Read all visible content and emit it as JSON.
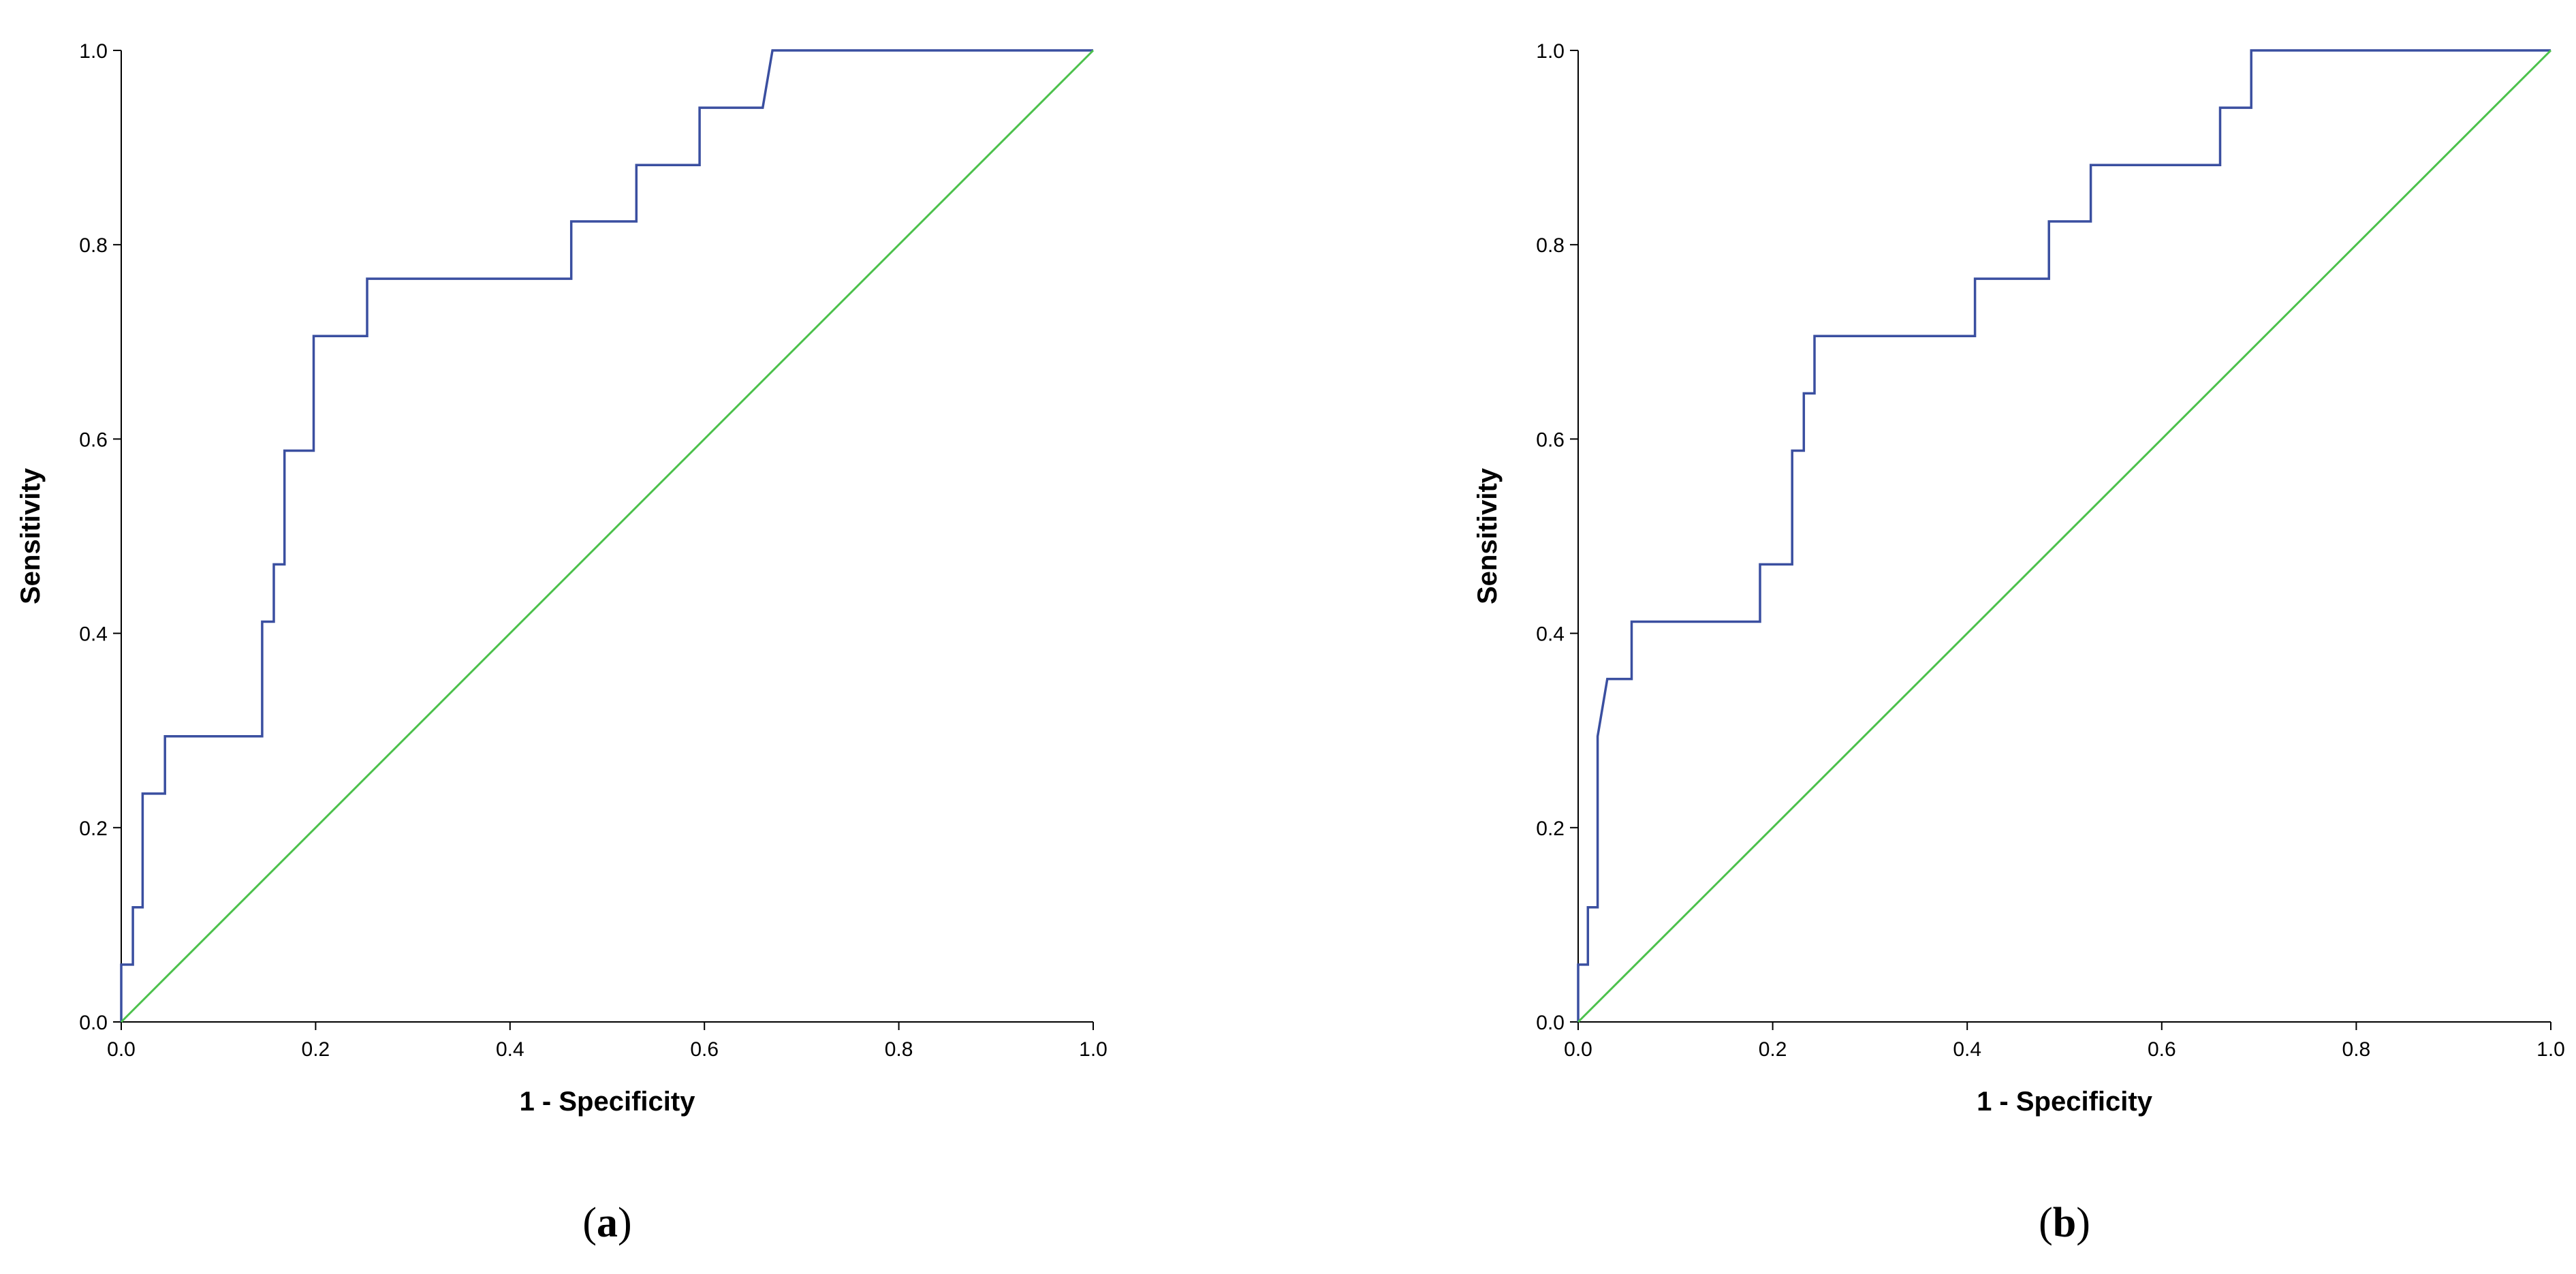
{
  "chart_data": [
    {
      "type": "line",
      "panel_label": "a",
      "title": "",
      "xlabel": "1 - Specificity",
      "ylabel": "Sensitivity",
      "xlim": [
        0,
        1
      ],
      "ylim": [
        0,
        1
      ],
      "x_ticks": [
        "0.0",
        "0.2",
        "0.4",
        "0.6",
        "0.8",
        "1.0"
      ],
      "y_ticks": [
        "0.0",
        "0.2",
        "0.4",
        "0.6",
        "0.8",
        "1.0"
      ],
      "grid": false,
      "colors": {
        "roc": "#3a4fa0",
        "reference": "#4cc14c"
      },
      "series": [
        {
          "name": "ROC curve",
          "x": [
            0.0,
            0.0,
            0.012,
            0.012,
            0.022,
            0.022,
            0.045,
            0.045,
            0.145,
            0.145,
            0.157,
            0.157,
            0.168,
            0.168,
            0.198,
            0.198,
            0.253,
            0.253,
            0.463,
            0.463,
            0.53,
            0.53,
            0.595,
            0.595,
            0.66,
            0.67,
            1.0
          ],
          "y": [
            0.0,
            0.059,
            0.059,
            0.118,
            0.118,
            0.235,
            0.235,
            0.294,
            0.294,
            0.412,
            0.412,
            0.471,
            0.471,
            0.588,
            0.588,
            0.706,
            0.706,
            0.765,
            0.765,
            0.824,
            0.824,
            0.882,
            0.882,
            0.941,
            0.941,
            1.0,
            1.0
          ]
        },
        {
          "name": "Reference line",
          "x": [
            0.0,
            1.0
          ],
          "y": [
            0.0,
            1.0
          ]
        }
      ]
    },
    {
      "type": "line",
      "panel_label": "b",
      "title": "",
      "xlabel": "1 - Specificity",
      "ylabel": "Sensitivity",
      "xlim": [
        0,
        1
      ],
      "ylim": [
        0,
        1
      ],
      "x_ticks": [
        "0.0",
        "0.2",
        "0.4",
        "0.6",
        "0.8",
        "1.0"
      ],
      "y_ticks": [
        "0.0",
        "0.2",
        "0.4",
        "0.6",
        "0.8",
        "1.0"
      ],
      "grid": false,
      "colors": {
        "roc": "#3a4fa0",
        "reference": "#4cc14c"
      },
      "series": [
        {
          "name": "ROC curve",
          "x": [
            0.0,
            0.0,
            0.01,
            0.01,
            0.02,
            0.02,
            0.03,
            0.04,
            0.055,
            0.055,
            0.187,
            0.187,
            0.22,
            0.22,
            0.232,
            0.232,
            0.243,
            0.243,
            0.408,
            0.408,
            0.484,
            0.484,
            0.527,
            0.527,
            0.66,
            0.66,
            0.692,
            0.692,
            1.0
          ],
          "y": [
            0.0,
            0.059,
            0.059,
            0.118,
            0.118,
            0.294,
            0.353,
            0.353,
            0.353,
            0.412,
            0.412,
            0.471,
            0.471,
            0.588,
            0.588,
            0.647,
            0.647,
            0.706,
            0.706,
            0.765,
            0.765,
            0.824,
            0.824,
            0.882,
            0.882,
            0.941,
            0.941,
            1.0,
            1.0
          ]
        },
        {
          "name": "Reference line",
          "x": [
            0.0,
            1.0
          ],
          "y": [
            0.0,
            1.0
          ]
        }
      ]
    }
  ]
}
